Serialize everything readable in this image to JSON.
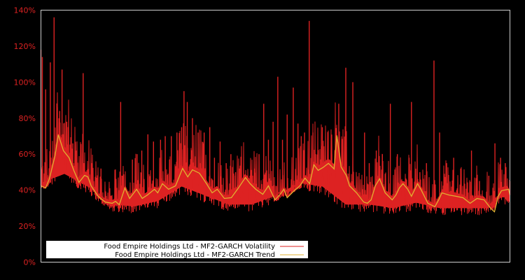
{
  "chart_data": {
    "type": "line",
    "title": "",
    "xlabel": "",
    "ylabel": "",
    "ylim": [
      0,
      140
    ],
    "y_ticks": [
      "0%",
      "20%",
      "40%",
      "60%",
      "80%",
      "100%",
      "120%",
      "140%"
    ],
    "y_tick_values": [
      0,
      20,
      40,
      60,
      80,
      100,
      120,
      140
    ],
    "x_ticks": [],
    "grid": false,
    "legend_position": "lower left",
    "background": "#000000",
    "axis_color": "#cccccc",
    "tick_label_color": "#dd2222",
    "series": [
      {
        "name": "Food Empire Holdings Ltd - MF2-GARCH Volatility",
        "color": "#dd2222",
        "style": "line",
        "note": "high-frequency series; spikes listed as [x_fraction, value%]",
        "spikes": [
          [
            0.0,
            118
          ],
          [
            0.003,
            114
          ],
          [
            0.01,
            96
          ],
          [
            0.013,
            46
          ],
          [
            0.02,
            111
          ],
          [
            0.028,
            136
          ],
          [
            0.035,
            86
          ],
          [
            0.04,
            84
          ],
          [
            0.045,
            107
          ],
          [
            0.055,
            78
          ],
          [
            0.068,
            66
          ],
          [
            0.075,
            62
          ],
          [
            0.09,
            105
          ],
          [
            0.108,
            55
          ],
          [
            0.128,
            52
          ],
          [
            0.17,
            89
          ],
          [
            0.195,
            57
          ],
          [
            0.205,
            60
          ],
          [
            0.215,
            62
          ],
          [
            0.228,
            71
          ],
          [
            0.24,
            67
          ],
          [
            0.255,
            68
          ],
          [
            0.265,
            70
          ],
          [
            0.278,
            70
          ],
          [
            0.29,
            72
          ],
          [
            0.3,
            75
          ],
          [
            0.305,
            95
          ],
          [
            0.312,
            89
          ],
          [
            0.323,
            80
          ],
          [
            0.335,
            72
          ],
          [
            0.348,
            72
          ],
          [
            0.36,
            75
          ],
          [
            0.37,
            58
          ],
          [
            0.382,
            67
          ],
          [
            0.395,
            55
          ],
          [
            0.405,
            60
          ],
          [
            0.415,
            50
          ],
          [
            0.425,
            52
          ],
          [
            0.44,
            48
          ],
          [
            0.455,
            52
          ],
          [
            0.465,
            60
          ],
          [
            0.475,
            88
          ],
          [
            0.485,
            68
          ],
          [
            0.495,
            78
          ],
          [
            0.505,
            103
          ],
          [
            0.515,
            68
          ],
          [
            0.525,
            82
          ],
          [
            0.538,
            97
          ],
          [
            0.548,
            77
          ],
          [
            0.555,
            70
          ],
          [
            0.562,
            72
          ],
          [
            0.572,
            134
          ],
          [
            0.58,
            72
          ],
          [
            0.6,
            75
          ],
          [
            0.62,
            60
          ],
          [
            0.635,
            88
          ],
          [
            0.65,
            108
          ],
          [
            0.665,
            100
          ],
          [
            0.69,
            72
          ],
          [
            0.7,
            55
          ],
          [
            0.715,
            62
          ],
          [
            0.728,
            60
          ],
          [
            0.745,
            88
          ],
          [
            0.76,
            60
          ],
          [
            0.785,
            58
          ],
          [
            0.79,
            89
          ],
          [
            0.808,
            50
          ],
          [
            0.822,
            55
          ],
          [
            0.838,
            112
          ],
          [
            0.85,
            72
          ],
          [
            0.865,
            55
          ],
          [
            0.88,
            58
          ],
          [
            0.895,
            52
          ],
          [
            0.918,
            62
          ],
          [
            0.935,
            45
          ],
          [
            0.955,
            48
          ],
          [
            0.968,
            66
          ],
          [
            0.98,
            58
          ],
          [
            0.99,
            55
          ],
          [
            1.0,
            45
          ]
        ],
        "floor_approx": [
          [
            0.0,
            40
          ],
          [
            0.05,
            45
          ],
          [
            0.1,
            38
          ],
          [
            0.15,
            28
          ],
          [
            0.2,
            27
          ],
          [
            0.25,
            30
          ],
          [
            0.3,
            38
          ],
          [
            0.35,
            33
          ],
          [
            0.4,
            28
          ],
          [
            0.45,
            28
          ],
          [
            0.5,
            33
          ],
          [
            0.55,
            40
          ],
          [
            0.6,
            38
          ],
          [
            0.65,
            28
          ],
          [
            0.7,
            28
          ],
          [
            0.75,
            26
          ],
          [
            0.8,
            29
          ],
          [
            0.85,
            26
          ],
          [
            0.9,
            26
          ],
          [
            0.95,
            26
          ],
          [
            0.97,
            32
          ],
          [
            1.0,
            32
          ]
        ]
      },
      {
        "name": "Food Empire Holdings Ltd - MF2-GARCH Trend",
        "color": "#e0b030",
        "style": "line",
        "points": [
          [
            0.0,
            42.4
          ],
          [
            0.01,
            41.2
          ],
          [
            0.018,
            46.3
          ],
          [
            0.03,
            59.1
          ],
          [
            0.037,
            70.8
          ],
          [
            0.048,
            61.9
          ],
          [
            0.06,
            58.0
          ],
          [
            0.07,
            51.0
          ],
          [
            0.081,
            44.3
          ],
          [
            0.093,
            48.2
          ],
          [
            0.1,
            47.4
          ],
          [
            0.107,
            42.4
          ],
          [
            0.122,
            36.6
          ],
          [
            0.137,
            33.4
          ],
          [
            0.152,
            32.7
          ],
          [
            0.159,
            33.8
          ],
          [
            0.167,
            31.9
          ],
          [
            0.179,
            41.2
          ],
          [
            0.189,
            35.4
          ],
          [
            0.204,
            40.5
          ],
          [
            0.216,
            35.4
          ],
          [
            0.227,
            37.3
          ],
          [
            0.242,
            40.5
          ],
          [
            0.249,
            38.5
          ],
          [
            0.259,
            43.6
          ],
          [
            0.272,
            40.5
          ],
          [
            0.287,
            42.4
          ],
          [
            0.302,
            52.1
          ],
          [
            0.313,
            47.4
          ],
          [
            0.323,
            51.3
          ],
          [
            0.338,
            49.4
          ],
          [
            0.353,
            43.6
          ],
          [
            0.365,
            38.5
          ],
          [
            0.376,
            40.5
          ],
          [
            0.391,
            35.4
          ],
          [
            0.406,
            35.8
          ],
          [
            0.421,
            41.2
          ],
          [
            0.436,
            47.0
          ],
          [
            0.446,
            43.6
          ],
          [
            0.458,
            40.5
          ],
          [
            0.473,
            37.7
          ],
          [
            0.485,
            42.4
          ],
          [
            0.499,
            34.6
          ],
          [
            0.51,
            37.7
          ],
          [
            0.518,
            40.5
          ],
          [
            0.525,
            35.8
          ],
          [
            0.54,
            39.7
          ],
          [
            0.552,
            42.4
          ],
          [
            0.563,
            46.7
          ],
          [
            0.573,
            43.6
          ],
          [
            0.582,
            54.1
          ],
          [
            0.591,
            51.0
          ],
          [
            0.601,
            52.5
          ],
          [
            0.613,
            54.9
          ],
          [
            0.625,
            51.8
          ],
          [
            0.631,
            70.4
          ],
          [
            0.64,
            52.9
          ],
          [
            0.651,
            48.2
          ],
          [
            0.658,
            42.4
          ],
          [
            0.673,
            38.5
          ],
          [
            0.688,
            33.4
          ],
          [
            0.696,
            32.7
          ],
          [
            0.704,
            34.6
          ],
          [
            0.713,
            42.4
          ],
          [
            0.722,
            46.3
          ],
          [
            0.734,
            38.5
          ],
          [
            0.749,
            34.6
          ],
          [
            0.757,
            37.3
          ],
          [
            0.764,
            41.2
          ],
          [
            0.772,
            43.6
          ],
          [
            0.782,
            40.5
          ],
          [
            0.79,
            36.6
          ],
          [
            0.803,
            43.6
          ],
          [
            0.81,
            40.5
          ],
          [
            0.825,
            32.7
          ],
          [
            0.84,
            30.8
          ],
          [
            0.848,
            34.6
          ],
          [
            0.855,
            38.5
          ],
          [
            0.87,
            37.3
          ],
          [
            0.885,
            36.6
          ],
          [
            0.9,
            35.8
          ],
          [
            0.915,
            32.7
          ],
          [
            0.93,
            35.4
          ],
          [
            0.945,
            34.6
          ],
          [
            0.96,
            29.6
          ],
          [
            0.967,
            28.0
          ],
          [
            0.975,
            36.6
          ],
          [
            0.982,
            39.7
          ],
          [
            0.997,
            40.5
          ],
          [
            1.0,
            37.3
          ]
        ]
      }
    ]
  },
  "legend": {
    "items": [
      {
        "label": "Food Empire Holdings Ltd - MF2-GARCH Volatility",
        "color": "#dd2222"
      },
      {
        "label": "Food Empire Holdings Ltd - MF2-GARCH Trend",
        "color": "#e0b030"
      }
    ]
  }
}
